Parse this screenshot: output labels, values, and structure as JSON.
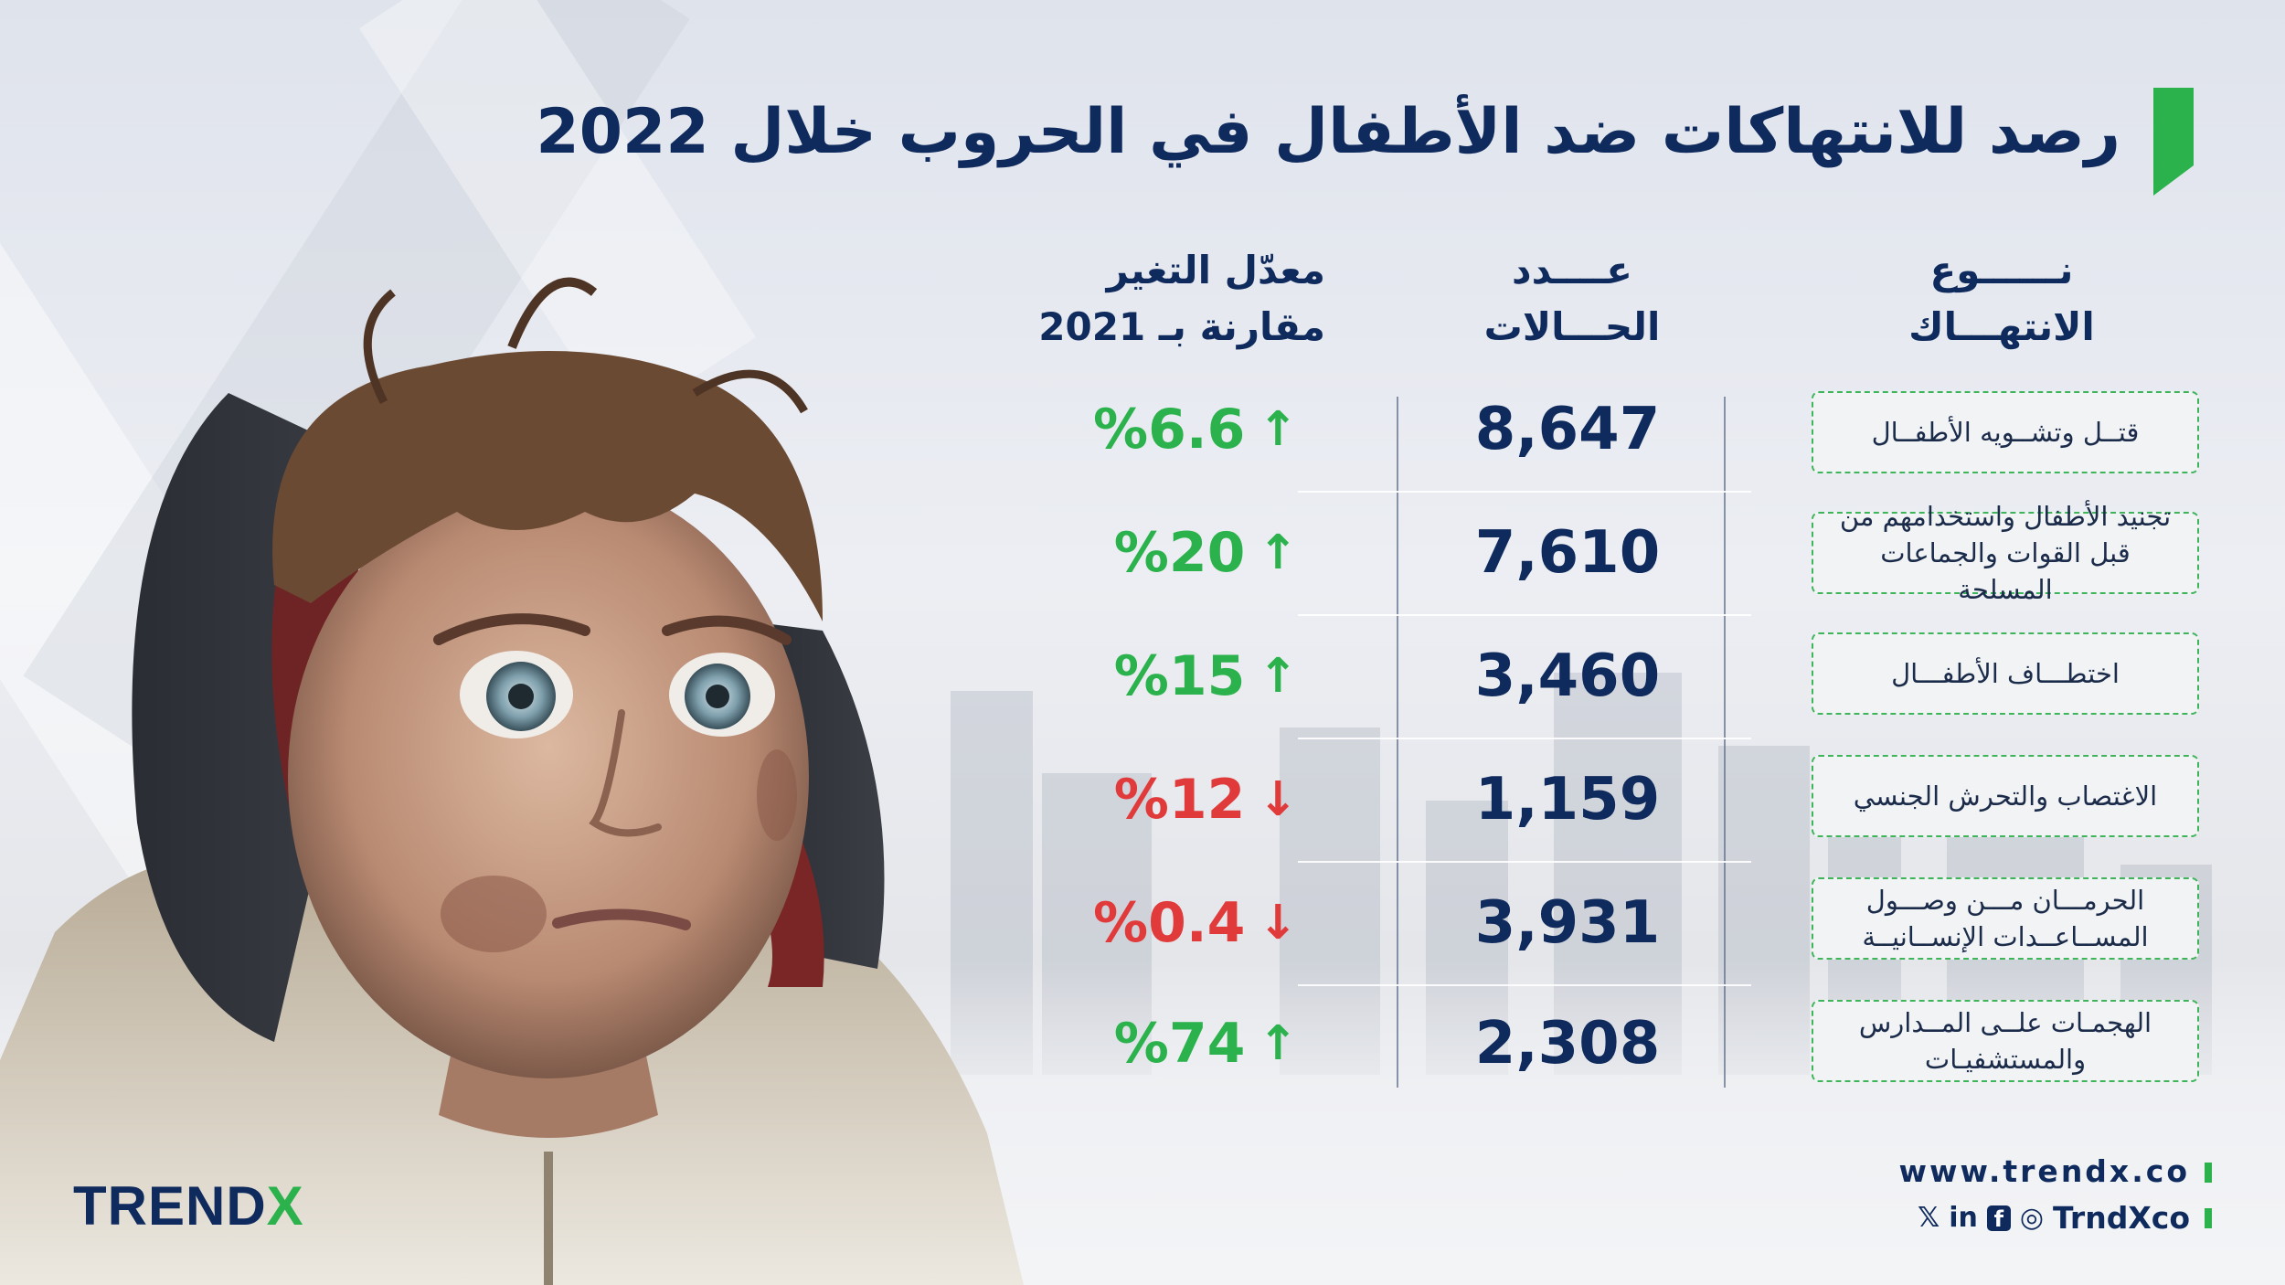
{
  "title": "رصد للانتهاكات ضد الأطفال في الحروب خلال 2022",
  "colors": {
    "navy": "#0f2a5c",
    "green": "#2bb24c",
    "red": "#e03a3a"
  },
  "headers": {
    "type_line1": "نــــــوع",
    "type_line2": "الانتهـــاك",
    "count_line1": "عــــدد",
    "count_line2": "الحـــالات",
    "change_line1": "معدّل التغير",
    "change_line2": "مقارنة بـ 2021"
  },
  "chart_data": {
    "type": "table",
    "title": "رصد للانتهاكات ضد الأطفال في الحروب خلال 2022",
    "columns": [
      "نوع الانتهاك",
      "عدد الحالات",
      "معدّل التغير مقارنة بـ 2021"
    ],
    "rows": [
      {
        "violation": "قتــل وتشــويه الأطفــال",
        "count": "8,647",
        "change": "%6.6",
        "direction": "up"
      },
      {
        "violation": "تجنيد الأطفال واستخدامهم من قبل القوات والجماعات المسلحة",
        "count": "7,610",
        "change": "%20",
        "direction": "up"
      },
      {
        "violation": "اختطـــاف الأطفـــال",
        "count": "3,460",
        "change": "%15",
        "direction": "up"
      },
      {
        "violation": "الاغتصاب والتحرش الجنسي",
        "count": "1,159",
        "change": "%12",
        "direction": "down"
      },
      {
        "violation": "الحرمـــان مـــن وصـــول المســاعــدات الإنســانيــة",
        "count": "3,931",
        "change": "%0.4",
        "direction": "down"
      },
      {
        "violation": "الهجمـات علــى المــدارس والمستشفيـات",
        "count": "2,308",
        "change": "%74",
        "direction": "up"
      }
    ]
  },
  "arrows": {
    "up": "↑",
    "down": "↓"
  },
  "footer": {
    "logo_main": "TREND",
    "logo_x": "X",
    "website": "www.trendx.co",
    "handle": "TrndXco",
    "social": {
      "x": "𝕏",
      "linkedin": "in",
      "facebook": "f",
      "instagram": "◎"
    }
  }
}
